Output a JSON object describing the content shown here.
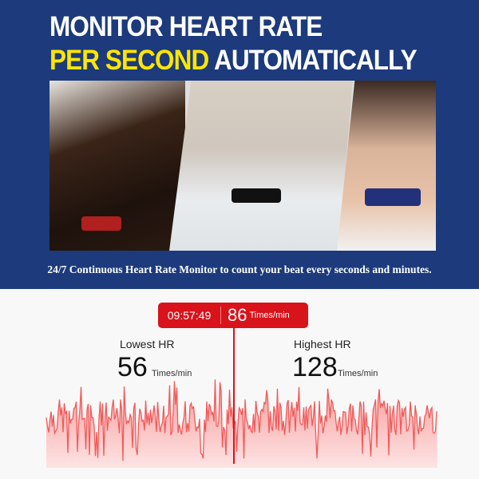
{
  "headline": {
    "line1": "MONITOR HEART RATE",
    "line2_highlight": "PER SECOND",
    "line2_rest": "AUTOMATICALLY"
  },
  "caption": "24/7 Continuous Heart Rate Monitor to count your beat every seconds and minutes.",
  "tooltip": {
    "time": "09:57:49",
    "value": "86",
    "unit": "Times/min"
  },
  "lowest": {
    "label": "Lowest HR",
    "value": "56",
    "unit": "Times/min"
  },
  "highest": {
    "label": "Highest HR",
    "value": "128",
    "unit": "Times/min"
  },
  "colors": {
    "banner": "#1c3a7c",
    "highlight": "#ffe600",
    "accent": "#d8131b",
    "line": "#f25a5a"
  }
}
